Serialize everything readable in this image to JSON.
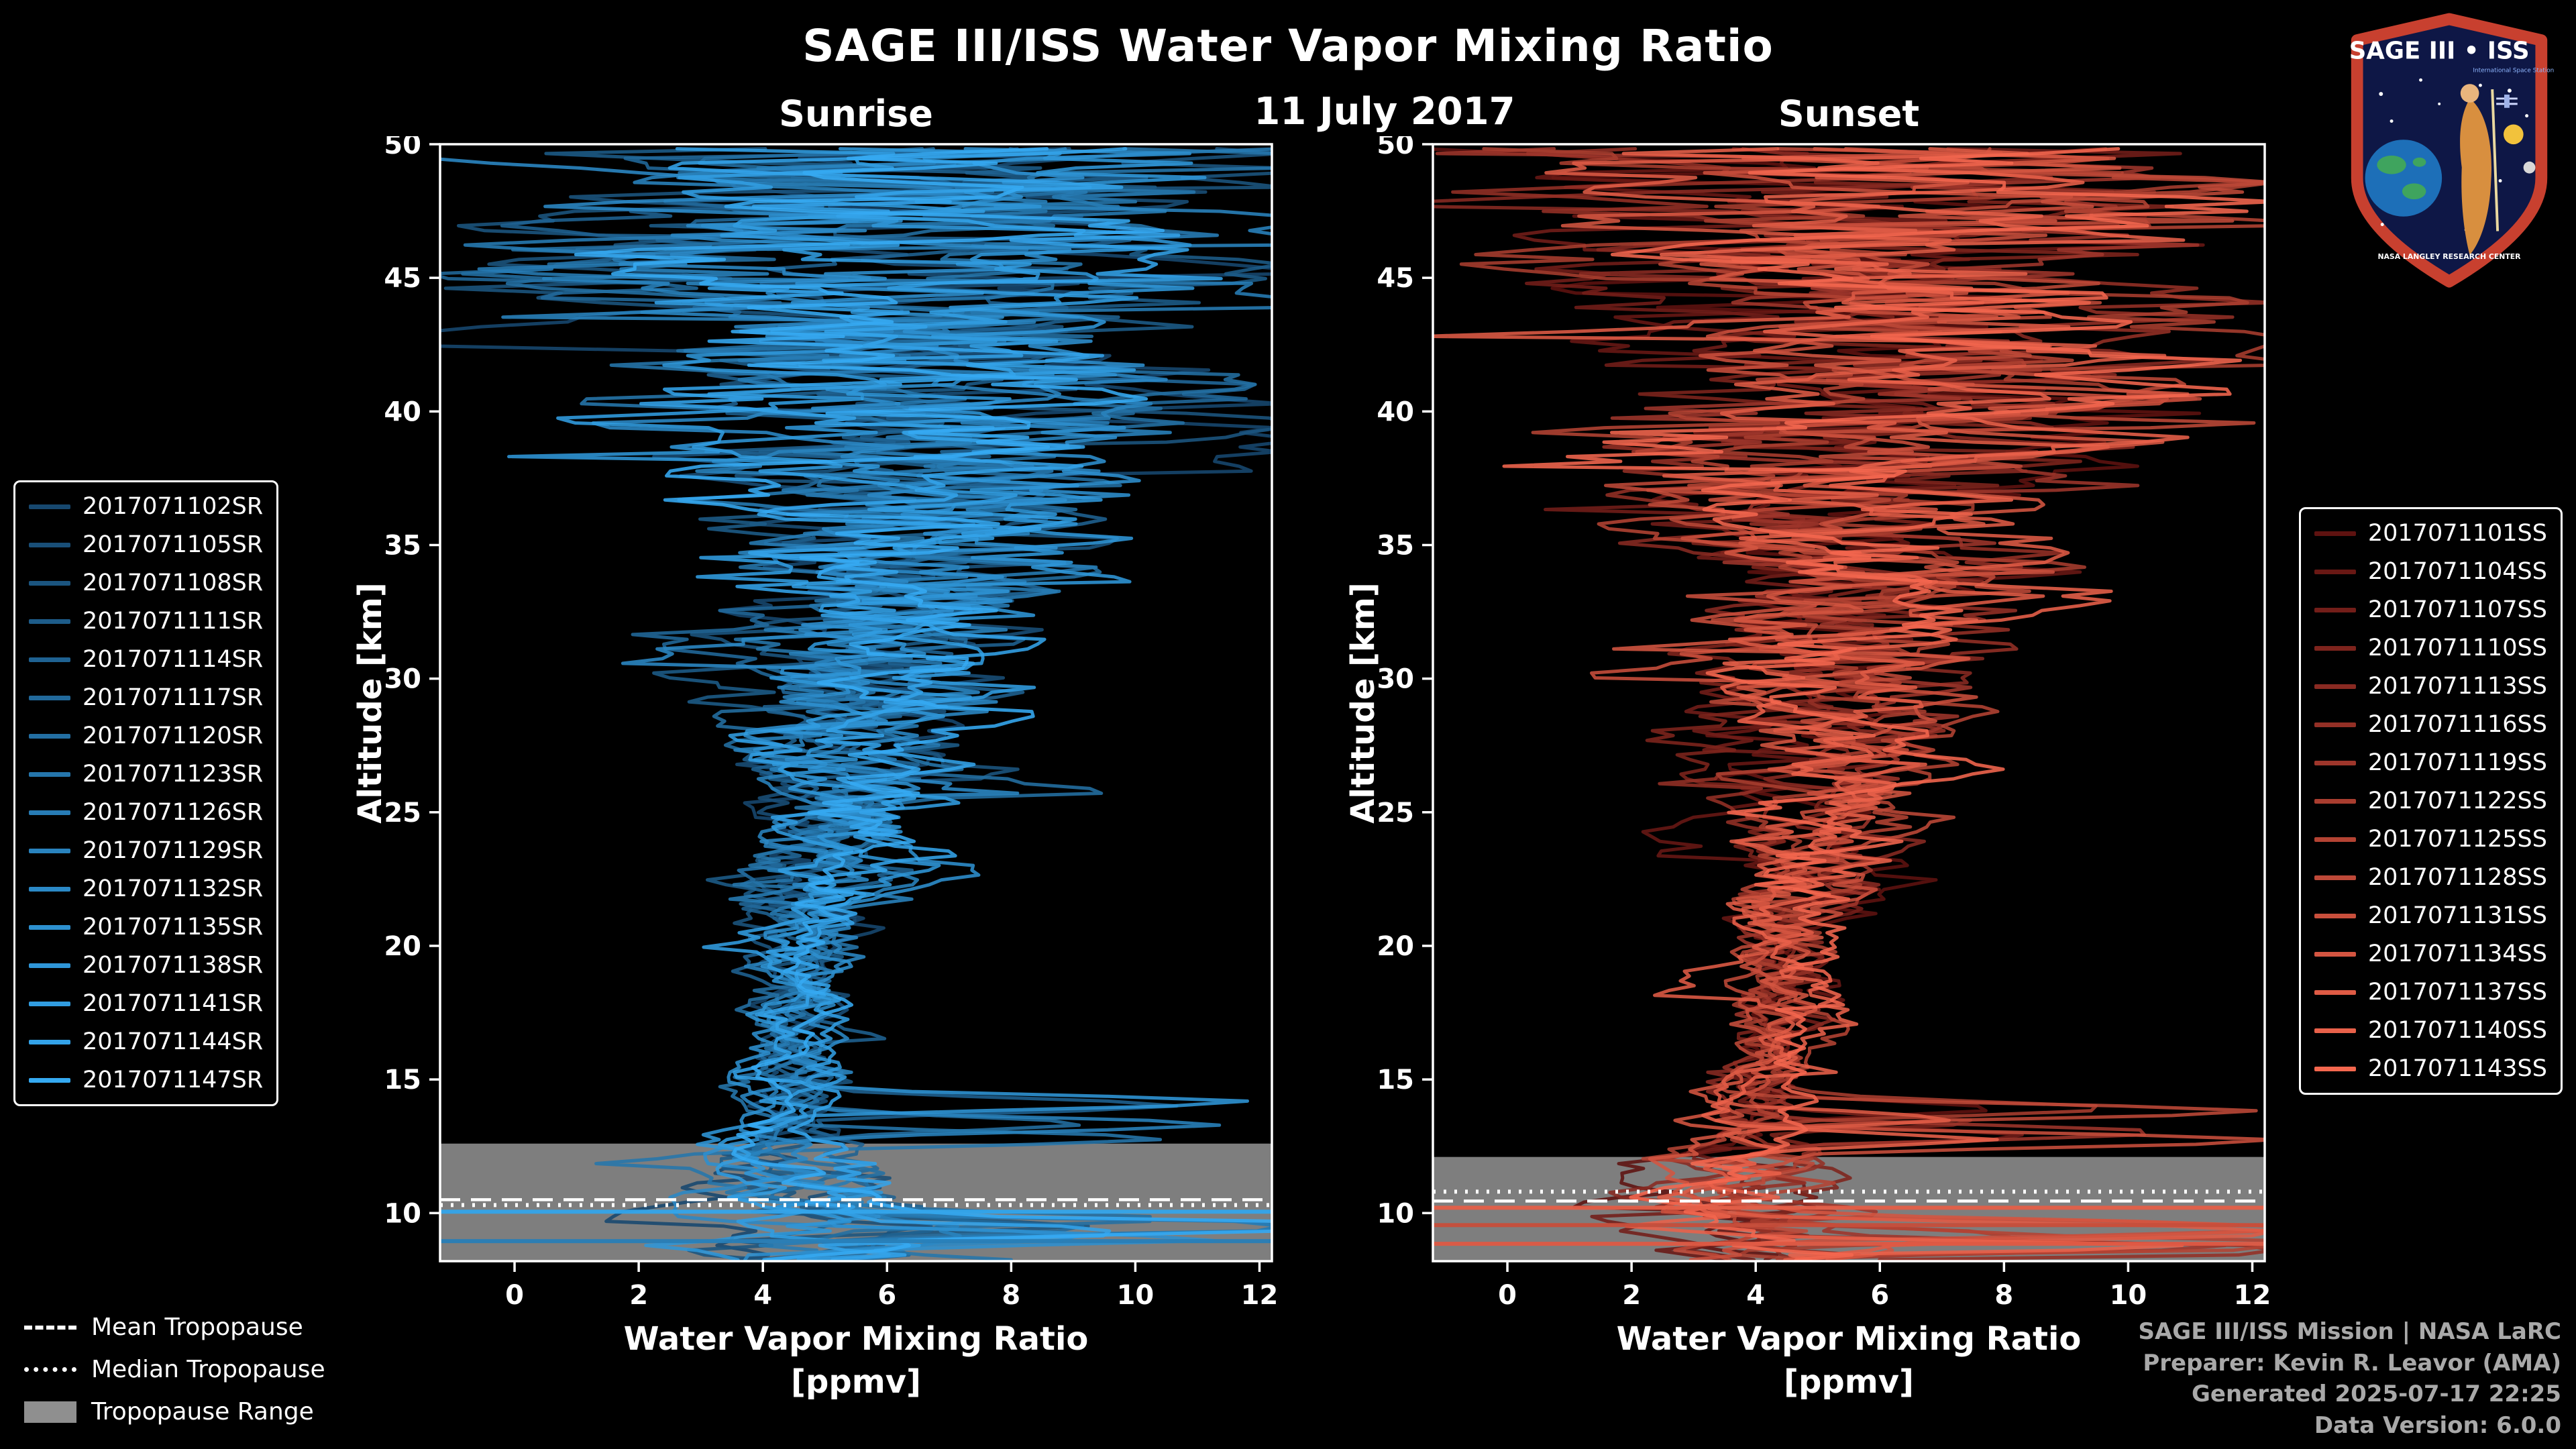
{
  "header": {
    "title": "SAGE III/ISS Water Vapor Mixing Ratio",
    "date": "11 July 2017"
  },
  "tropopause_legend": {
    "mean": "Mean Tropopause",
    "median": "Median Tropopause",
    "range": "Tropopause Range"
  },
  "footer": {
    "lines": [
      "SAGE III/ISS Mission | NASA LaRC",
      "Preparer: Kevin R. Leavor (AMA)",
      "Generated 2025-07-17 22:25",
      "Data Version: 6.0.0"
    ]
  },
  "logo": {
    "title": "SAGE III • ISS",
    "caption": "International Space Station",
    "banner": "NASA LANGLEY RESEARCH CENTER"
  },
  "chart_data": {
    "type": "line",
    "title": "SAGE III/ISS Water Vapor Mixing Ratio",
    "subtitle": "11 July 2017",
    "xlabel": "Water Vapor Mixing Ratio",
    "xlabel_units": "[ppmv]",
    "ylabel": "Altitude [km]",
    "xlim": [
      -1.2,
      12.2
    ],
    "ylim": [
      8.2,
      50
    ],
    "x_ticks": [
      0,
      2,
      4,
      6,
      8,
      10,
      12
    ],
    "y_ticks": [
      10,
      15,
      20,
      25,
      30,
      35,
      40,
      45,
      50
    ],
    "grid": false,
    "background": "#000000",
    "panels": [
      {
        "title": "Sunrise",
        "event_type": "SR",
        "color_ramp": [
          "#17486f",
          "#35aaf2"
        ],
        "legend_position": "outside-left",
        "series_names": [
          "2017071102SR",
          "2017071105SR",
          "2017071108SR",
          "2017071111SR",
          "2017071114SR",
          "2017071117SR",
          "2017071120SR",
          "2017071123SR",
          "2017071126SR",
          "2017071129SR",
          "2017071132SR",
          "2017071135SR",
          "2017071138SR",
          "2017071141SR",
          "2017071144SR",
          "2017071147SR"
        ],
        "envelope": {
          "altitude_km": [
            8.3,
            10,
            12,
            13,
            14,
            16,
            18,
            20,
            24,
            28,
            32,
            36,
            40,
            44,
            47,
            50
          ],
          "mean_ppmv": [
            4.5,
            4.2,
            4.1,
            4.1,
            4.2,
            4.4,
            4.5,
            4.7,
            5.1,
            5.6,
            6.0,
            6.3,
            6.4,
            6.3,
            6.2,
            6.0
          ],
          "spread_ppmv": [
            2.8,
            2.0,
            1.4,
            1.0,
            0.8,
            0.8,
            0.9,
            1.1,
            1.6,
            2.2,
            2.9,
            3.7,
            4.6,
            5.6,
            6.3,
            6.6
          ]
        },
        "tropopause": {
          "mean_km": 10.5,
          "median_km": 10.3,
          "range_km": [
            8.2,
            12.6
          ]
        },
        "horizontal_segments": [
          {
            "altitude_km": 10.05,
            "shade": 0.95
          },
          {
            "altitude_km": 8.95,
            "shade": 0.55
          }
        ]
      },
      {
        "title": "Sunset",
        "event_type": "SS",
        "color_ramp": [
          "#5e1210",
          "#f4674e"
        ],
        "legend_position": "outside-right",
        "series_names": [
          "2017071101SS",
          "2017071104SS",
          "2017071107SS",
          "2017071110SS",
          "2017071113SS",
          "2017071116SS",
          "2017071119SS",
          "2017071122SS",
          "2017071125SS",
          "2017071128SS",
          "2017071131SS",
          "2017071134SS",
          "2017071137SS",
          "2017071140SS",
          "2017071143SS"
        ],
        "envelope": {
          "altitude_km": [
            8.3,
            10,
            12,
            13,
            14,
            16,
            18,
            20,
            24,
            28,
            32,
            36,
            40,
            44,
            47,
            50
          ],
          "mean_ppmv": [
            4.4,
            4.0,
            3.9,
            3.9,
            4.0,
            4.2,
            4.4,
            4.6,
            5.0,
            5.4,
            5.8,
            6.1,
            6.3,
            6.3,
            6.2,
            6.1
          ],
          "spread_ppmv": [
            2.8,
            2.0,
            1.4,
            1.0,
            0.8,
            0.8,
            0.9,
            1.1,
            1.6,
            2.2,
            2.9,
            3.7,
            4.6,
            5.6,
            6.3,
            6.6
          ]
        },
        "tropopause": {
          "mean_km": 10.45,
          "median_km": 10.8,
          "range_km": [
            8.2,
            12.1
          ]
        },
        "horizontal_segments": [
          {
            "altitude_km": 8.85,
            "shade": 0.85
          },
          {
            "altitude_km": 9.55,
            "shade": 0.7
          },
          {
            "altitude_km": 10.2,
            "shade": 0.9
          }
        ]
      }
    ]
  }
}
